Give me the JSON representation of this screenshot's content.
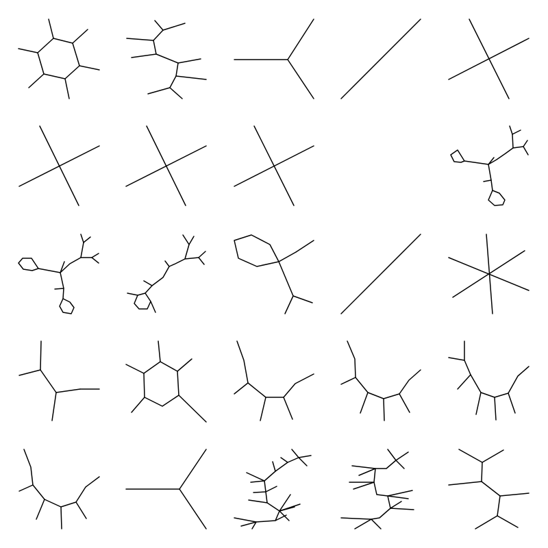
{
  "grid": {
    "rows": 5,
    "cols": 5
  },
  "colors": {
    "background": "#ffffff",
    "line": "#000000"
  },
  "molecules": [
    {
      "name": "molecule-1-1-benzene-hexasubstituted",
      "index": 1
    },
    {
      "name": "molecule-1-2-branched-chain",
      "index": 2
    },
    {
      "name": "molecule-1-3-y-branch",
      "index": 3
    },
    {
      "name": "molecule-1-4-single-line",
      "index": 4
    },
    {
      "name": "molecule-1-5-cross",
      "index": 5
    },
    {
      "name": "molecule-2-1-cross",
      "index": 6
    },
    {
      "name": "molecule-2-2-cross",
      "index": 7
    },
    {
      "name": "molecule-2-3-cross",
      "index": 8
    },
    {
      "name": "molecule-2-4-empty",
      "index": 9
    },
    {
      "name": "molecule-2-5-two-ring-branched",
      "index": 10
    },
    {
      "name": "molecule-3-1-two-ring-branched",
      "index": 11
    },
    {
      "name": "molecule-3-2-ring-chain-branched",
      "index": 12
    },
    {
      "name": "molecule-3-3-ring-with-chain",
      "index": 13
    },
    {
      "name": "molecule-3-4-single-line",
      "index": 14
    },
    {
      "name": "molecule-3-5-star",
      "index": 15
    },
    {
      "name": "molecule-4-1-branched",
      "index": 16
    },
    {
      "name": "molecule-4-2-benzene-substituted",
      "index": 17
    },
    {
      "name": "molecule-4-3-chain",
      "index": 18
    },
    {
      "name": "molecule-4-4-chain",
      "index": 19
    },
    {
      "name": "molecule-4-5-chain",
      "index": 20
    },
    {
      "name": "molecule-5-1-chain",
      "index": 21
    },
    {
      "name": "molecule-5-2-y-branch",
      "index": 22
    },
    {
      "name": "molecule-5-3-long-branched-chain",
      "index": 23
    },
    {
      "name": "molecule-5-4-long-branched-chain",
      "index": 24
    },
    {
      "name": "molecule-5-5-branched",
      "index": 25
    }
  ]
}
